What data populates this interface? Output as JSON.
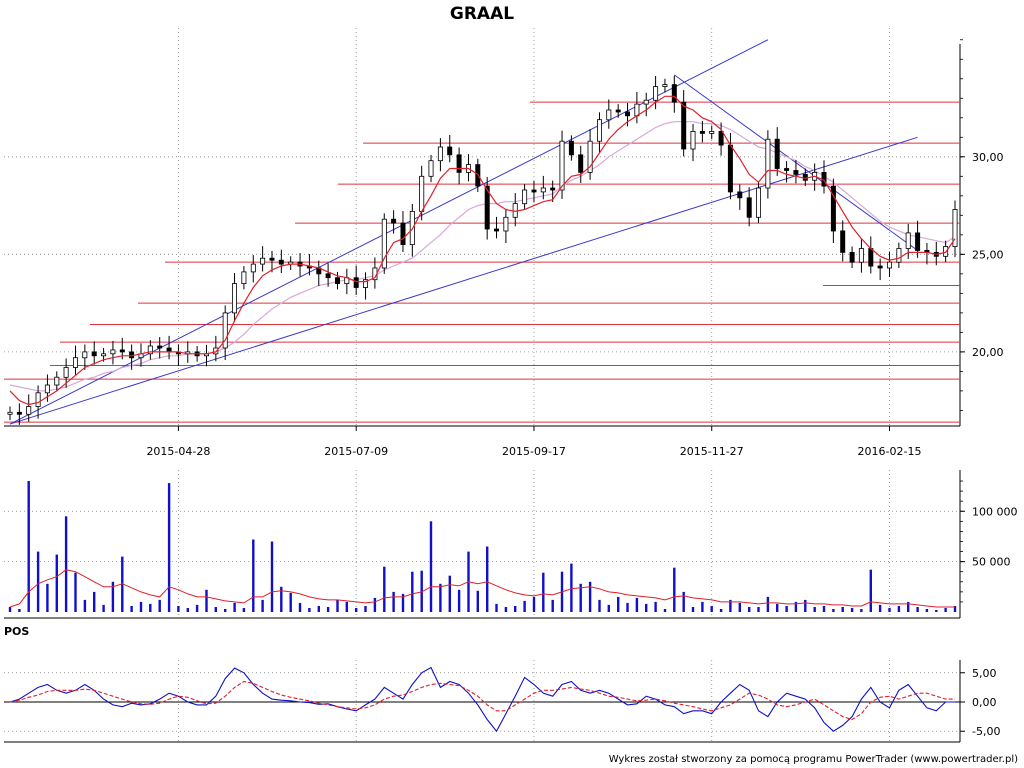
{
  "chart_data": [
    {
      "type": "candlestick",
      "title": "GRAAL",
      "x_ticks": [
        "2015-04-28",
        "2015-07-09",
        "2015-09-17",
        "2015-11-27",
        "2016-02-15"
      ],
      "y_ticks": [
        "20,00",
        "25,00",
        "30,00"
      ],
      "ylim": [
        16.2,
        36.5
      ],
      "grid": true,
      "overlays": [
        "moving-average-fast",
        "moving-average-slow",
        "trendlines",
        "horizontal-support-resistance"
      ],
      "support_resistance_levels": [
        16.4,
        18.6,
        19.3,
        20.5,
        21.4,
        22.5,
        23.4,
        24.6,
        26.6,
        28.6,
        30.7,
        32.8
      ],
      "close": [
        16.9,
        16.8,
        17.2,
        17.9,
        18.3,
        18.7,
        19.2,
        19.7,
        20.0,
        19.8,
        19.9,
        20.1,
        20.0,
        19.7,
        19.9,
        20.3,
        20.2,
        20.0,
        19.9,
        20.0,
        19.8,
        19.9,
        20.2,
        22.0,
        23.5,
        24.1,
        24.5,
        24.8,
        24.7,
        24.5,
        24.6,
        24.4,
        24.3,
        24.0,
        23.8,
        23.5,
        23.8,
        23.3,
        23.7,
        24.3,
        26.8,
        26.6,
        25.5,
        27.2,
        29.0,
        29.8,
        30.5,
        30.1,
        29.2,
        29.6,
        28.5,
        26.3,
        26.2,
        26.9,
        27.6,
        28.3,
        28.2,
        28.4,
        28.3,
        30.8,
        30.1,
        29.2,
        30.8,
        31.9,
        32.4,
        32.3,
        32.1,
        32.7,
        32.9,
        33.6,
        33.7,
        32.8,
        30.4,
        31.3,
        31.2,
        31.3,
        30.6,
        28.2,
        27.9,
        26.9,
        28.4,
        30.9,
        29.4,
        29.3,
        29.1,
        28.8,
        29.2,
        28.5,
        26.2,
        25.1,
        24.6,
        25.3,
        24.4,
        24.3,
        24.6,
        25.3,
        26.1,
        25.2,
        25.1,
        24.9,
        25.4,
        27.3
      ],
      "ma_fast": [
        18.0,
        17.5,
        17.3,
        17.4,
        17.7,
        18.0,
        18.4,
        18.8,
        19.2,
        19.4,
        19.6,
        19.7,
        19.8,
        19.8,
        19.9,
        20.0,
        20.0,
        20.0,
        20.0,
        19.9,
        19.9,
        19.9,
        20.0,
        20.6,
        21.6,
        22.5,
        23.3,
        23.9,
        24.2,
        24.4,
        24.5,
        24.5,
        24.4,
        24.3,
        24.1,
        23.9,
        23.8,
        23.6,
        23.6,
        23.8,
        24.8,
        25.6,
        25.8,
        26.3,
        27.2,
        28.0,
        28.9,
        29.4,
        29.4,
        29.4,
        29.1,
        28.3,
        27.6,
        27.3,
        27.2,
        27.3,
        27.5,
        27.7,
        27.8,
        28.5,
        29.0,
        29.1,
        29.5,
        30.2,
        30.9,
        31.4,
        31.8,
        32.1,
        32.4,
        32.8,
        33.1,
        33.1,
        32.6,
        32.4,
        32.0,
        31.8,
        31.4,
        30.6,
        29.9,
        29.1,
        28.7,
        29.3,
        29.3,
        29.1,
        29.0,
        28.9,
        29.0,
        28.8,
        28.0,
        27.2,
        26.4,
        25.8,
        25.3,
        24.9,
        24.7,
        24.8,
        25.1,
        25.1,
        25.1,
        25.0,
        25.1,
        25.8
      ],
      "ma_slow": [
        18.3,
        18.2,
        18.1,
        18.0,
        18.0,
        18.1,
        18.2,
        18.4,
        18.6,
        18.7,
        18.9,
        19.0,
        19.2,
        19.3,
        19.4,
        19.6,
        19.7,
        19.8,
        19.8,
        19.9,
        19.9,
        19.9,
        20.0,
        20.2,
        20.5,
        20.9,
        21.4,
        21.8,
        22.2,
        22.5,
        22.8,
        23.0,
        23.2,
        23.4,
        23.5,
        23.6,
        23.7,
        23.7,
        23.8,
        23.9,
        24.2,
        24.4,
        24.6,
        24.8,
        25.2,
        25.6,
        26.0,
        26.5,
        26.9,
        27.3,
        27.5,
        27.6,
        27.6,
        27.7,
        27.7,
        27.8,
        27.9,
        28.0,
        28.1,
        28.5,
        28.8,
        29.0,
        29.3,
        29.6,
        30.0,
        30.3,
        30.6,
        30.9,
        31.2,
        31.5,
        31.7,
        31.8,
        31.8,
        31.8,
        31.7,
        31.7,
        31.6,
        31.4,
        31.1,
        30.8,
        30.5,
        30.4,
        30.2,
        30.0,
        29.8,
        29.5,
        29.3,
        29.0,
        28.7,
        28.3,
        27.9,
        27.5,
        27.1,
        26.7,
        26.4,
        26.2,
        26.0,
        25.9,
        25.8,
        25.7,
        25.6,
        25.9
      ]
    },
    {
      "type": "bar",
      "name": "volume",
      "y_ticks": [
        "50 000",
        "100 000"
      ],
      "ylim": [
        0,
        135000
      ],
      "values": [
        5000,
        3000,
        130000,
        60000,
        28000,
        57000,
        95000,
        39000,
        12000,
        20000,
        7000,
        30000,
        55000,
        6000,
        10000,
        8000,
        12000,
        128000,
        6000,
        4000,
        7000,
        22000,
        5000,
        3000,
        9000,
        4000,
        72000,
        12000,
        70000,
        25000,
        19000,
        9000,
        4000,
        6000,
        5000,
        12000,
        10000,
        4000,
        6000,
        14000,
        45000,
        20000,
        18000,
        40000,
        41000,
        90000,
        28000,
        36000,
        22000,
        60000,
        21000,
        65000,
        8000,
        5000,
        6000,
        11000,
        15000,
        39000,
        12000,
        40000,
        48000,
        28000,
        30000,
        12000,
        7000,
        15000,
        9000,
        14000,
        8000,
        10000,
        3000,
        44000,
        20000,
        5000,
        10000,
        6000,
        3000,
        12000,
        9000,
        5000,
        5000,
        15000,
        8000,
        6000,
        10000,
        12000,
        5000,
        6000,
        3000,
        5000,
        4000,
        3000,
        42000,
        7000,
        4000,
        6000,
        10000,
        5000,
        3000,
        2000,
        4000,
        6000
      ],
      "average": [
        5000,
        8000,
        20000,
        28000,
        32000,
        35000,
        42000,
        40000,
        35000,
        30000,
        25000,
        25000,
        28000,
        24000,
        20000,
        17000,
        15000,
        25000,
        22000,
        18000,
        15000,
        15000,
        13000,
        11000,
        10000,
        9000,
        15000,
        15000,
        20000,
        21000,
        20000,
        18000,
        15000,
        13000,
        12000,
        12000,
        11000,
        10000,
        9000,
        10000,
        14000,
        15000,
        15000,
        18000,
        20000,
        25000,
        25000,
        27000,
        26000,
        30000,
        28000,
        30000,
        26000,
        22000,
        19000,
        17000,
        16000,
        18000,
        17000,
        20000,
        23000,
        24000,
        25000,
        23000,
        20000,
        19000,
        17000,
        16000,
        15000,
        14000,
        12000,
        15000,
        16000,
        14000,
        13000,
        12000,
        10000,
        10000,
        10000,
        9000,
        8000,
        9000,
        9000,
        8000,
        8000,
        9000,
        8000,
        8000,
        7000,
        7000,
        6000,
        6000,
        10000,
        9000,
        8000,
        8000,
        8000,
        7000,
        6000,
        5000,
        5000,
        5000
      ]
    },
    {
      "type": "line",
      "name": "POS",
      "y_ticks": [
        "-5,00",
        "0,00",
        "5,00"
      ],
      "ylim": [
        -6.5,
        6.5
      ],
      "series": [
        {
          "values": [
            0.0,
            0.5,
            1.5,
            2.5,
            3.0,
            2.0,
            1.5,
            2.0,
            3.0,
            2.0,
            0.5,
            -0.5,
            -0.8,
            -0.2,
            -0.5,
            -0.3,
            0.5,
            1.5,
            1.0,
            0.0,
            -0.5,
            -0.5,
            1.0,
            4.0,
            5.8,
            5.0,
            3.0,
            1.5,
            0.5,
            0.3,
            0.2,
            0.0,
            -0.1,
            -0.4,
            -0.3,
            -0.8,
            -1.2,
            -1.5,
            -0.5,
            0.5,
            2.5,
            1.5,
            0.5,
            3.0,
            5.0,
            5.9,
            2.5,
            3.5,
            3.0,
            1.5,
            -0.5,
            -3.0,
            -5.0,
            -2.0,
            1.0,
            4.2,
            3.0,
            1.5,
            1.0,
            3.0,
            3.5,
            2.0,
            1.5,
            2.0,
            1.5,
            0.5,
            -0.5,
            -0.3,
            1.0,
            0.5,
            -0.5,
            -0.8,
            -2.0,
            -1.5,
            -1.5,
            -2.0,
            0.0,
            1.5,
            3.0,
            2.0,
            -1.5,
            -2.5,
            0.0,
            1.5,
            1.0,
            0.5,
            -1.0,
            -3.5,
            -5.0,
            -4.0,
            -2.5,
            0.5,
            2.5,
            0.0,
            -1.0,
            2.0,
            3.0,
            1.0,
            -1.0,
            -1.5,
            0.0,
            0.0
          ]
        },
        {
          "values": [
            0.0,
            0.3,
            0.8,
            1.2,
            1.8,
            2.0,
            2.0,
            2.0,
            2.2,
            2.0,
            1.5,
            1.0,
            0.5,
            0.0,
            -0.3,
            -0.4,
            -0.2,
            0.5,
            1.0,
            0.8,
            0.2,
            -0.3,
            -0.2,
            1.0,
            2.5,
            3.5,
            3.2,
            2.5,
            1.8,
            1.2,
            0.8,
            0.5,
            0.2,
            -0.2,
            -0.5,
            -0.8,
            -1.0,
            -1.2,
            -1.0,
            -0.5,
            0.5,
            1.0,
            1.2,
            1.8,
            2.5,
            3.0,
            3.2,
            3.0,
            2.8,
            2.0,
            1.0,
            -0.5,
            -1.5,
            -1.5,
            -0.5,
            0.5,
            1.5,
            2.0,
            2.0,
            2.2,
            2.5,
            2.2,
            2.0,
            1.5,
            1.0,
            0.8,
            0.5,
            0.2,
            0.3,
            0.5,
            0.2,
            -0.2,
            -0.5,
            -0.8,
            -1.2,
            -1.5,
            -1.0,
            -0.5,
            0.5,
            1.5,
            1.2,
            0.5,
            -0.5,
            -0.8,
            -0.5,
            0.0,
            0.5,
            -0.5,
            -1.5,
            -2.5,
            -3.0,
            -2.0,
            0.0,
            0.8,
            1.0,
            0.5,
            1.0,
            1.5,
            1.5,
            1.0,
            0.5,
            0.5
          ]
        }
      ]
    }
  ],
  "footer": "Wykres został stworzony za pomocą programu PowerTrader (www.powertrader.pl)"
}
